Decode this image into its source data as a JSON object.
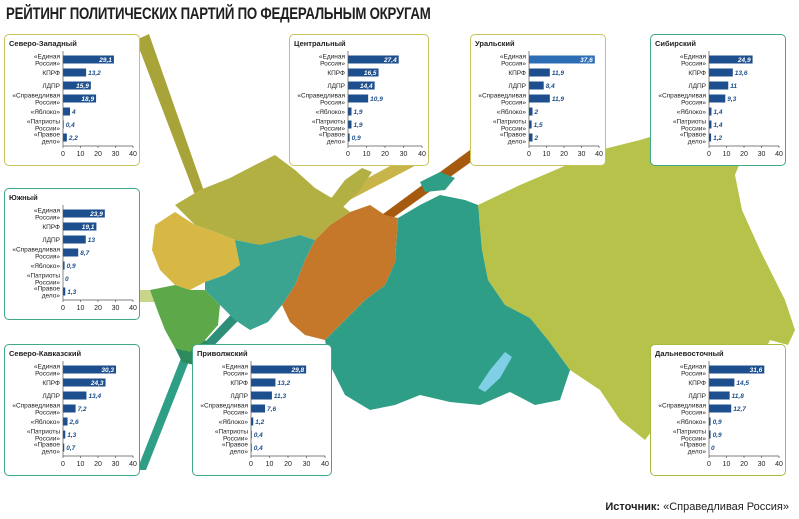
{
  "title": "РЕЙТИНГ ПОЛИТИЧЕСКИХ ПАРТИЙ ПО ФЕДЕРАЛЬНЫМ ОКРУГАМ",
  "source_label": "Источник:",
  "source_value": "«Справедливая Россия»",
  "colors": {
    "bar": "#1d4f8e",
    "bar_highlight": "#2c6db5",
    "text": "#222222",
    "muted_text": "#9aa0a6"
  },
  "chart_data": [
    {
      "type": "bar",
      "title": "Северо-Западный",
      "categories": [
        "«Единая Россия»",
        "КПРФ",
        "ЛДПР",
        "«Справедливая Россия»",
        "«Яблоко»",
        "«Патриоты России»",
        "«Правое дело»"
      ],
      "values": [
        29.1,
        13.2,
        15.9,
        18.9,
        4,
        0.4,
        2.2
      ],
      "value_labels": [
        "29,1",
        "13,2",
        "15,9",
        "18,9",
        "4",
        "0,4",
        "2,2"
      ],
      "xticks": [
        "0",
        "10",
        "20",
        "30",
        "40"
      ],
      "xlim": [
        0,
        40
      ]
    },
    {
      "type": "bar",
      "title": "Центральный",
      "categories": [
        "«Единая Россия»",
        "КПРФ",
        "ЛДПР",
        "«Справедливая Россия»",
        "«Яблоко»",
        "«Патриоты России»",
        "«Правое дело»"
      ],
      "values": [
        27.4,
        16.5,
        14.4,
        10.9,
        1.9,
        1.9,
        0.9
      ],
      "value_labels": [
        "27,4",
        "16,5",
        "14,4",
        "10,9",
        "1,9",
        "1,9",
        "0,9"
      ],
      "xticks": [
        "0",
        "10",
        "20",
        "30",
        "40"
      ],
      "xlim": [
        0,
        40
      ]
    },
    {
      "type": "bar",
      "title": "Уральский",
      "categories": [
        "«Единая Россия»",
        "КПРФ",
        "ЛДПР",
        "«Справедливая Россия»",
        "«Яблоко»",
        "«Патриоты России»",
        "«Правое дело»"
      ],
      "values": [
        37.6,
        11.9,
        8.4,
        11.9,
        2,
        1.5,
        2
      ],
      "value_labels": [
        "37,6",
        "11,9",
        "8,4",
        "11,9",
        "2",
        "1,5",
        "2"
      ],
      "xticks": [
        "0",
        "10",
        "20",
        "30",
        "40"
      ],
      "xlim": [
        0,
        40
      ]
    },
    {
      "type": "bar",
      "title": "Сибирский",
      "categories": [
        "«Единая Россия»",
        "КПРФ",
        "ЛДПР",
        "«Справедливая Россия»",
        "«Яблоко»",
        "«Патриоты России»",
        "«Правое дело»"
      ],
      "values": [
        24.9,
        13.6,
        11,
        9.3,
        1.4,
        1.4,
        1.2
      ],
      "value_labels": [
        "24,9",
        "13,6",
        "11",
        "9,3",
        "1,4",
        "1,4",
        "1,2"
      ],
      "xticks": [
        "0",
        "10",
        "20",
        "30",
        "40"
      ],
      "xlim": [
        0,
        40
      ]
    },
    {
      "type": "bar",
      "title": "Южный",
      "categories": [
        "«Единая Россия»",
        "КПРФ",
        "ЛДПР",
        "«Справедливая Россия»",
        "«Яблоко»",
        "«Патриоты России»",
        "«Правое дело»"
      ],
      "values": [
        23.9,
        19.1,
        13,
        8.7,
        0.9,
        0,
        1.3
      ],
      "value_labels": [
        "23,9",
        "19,1",
        "13",
        "8,7",
        "0,9",
        "0",
        "1,3"
      ],
      "xticks": [
        "0",
        "10",
        "20",
        "30",
        "40"
      ],
      "xlim": [
        0,
        40
      ]
    },
    {
      "type": "bar",
      "title": "Северо-Кавказский",
      "categories": [
        "«Единая Россия»",
        "КПРФ",
        "ЛДПР",
        "«Справедливая Россия»",
        "«Яблоко»",
        "«Патриоты России»",
        "«Правое дело»"
      ],
      "values": [
        30.3,
        24.3,
        13.4,
        7.2,
        2.6,
        1.3,
        0.7
      ],
      "value_labels": [
        "30,3",
        "24,3",
        "13,4",
        "7,2",
        "2,6",
        "1,3",
        "0,7"
      ],
      "xticks": [
        "0",
        "10",
        "20",
        "30",
        "40"
      ],
      "xlim": [
        0,
        40
      ]
    },
    {
      "type": "bar",
      "title": "Приволжский",
      "categories": [
        "«Единая Россия»",
        "КПРФ",
        "ЛДПР",
        "«Справедливая Россия»",
        "«Яблоко»",
        "«Патриоты России»",
        "«Правое дело»"
      ],
      "values": [
        29.8,
        13.2,
        11.3,
        7.6,
        1.2,
        0.4,
        0.4
      ],
      "value_labels": [
        "29,8",
        "13,2",
        "11,3",
        "7,6",
        "1,2",
        "0,4",
        "0,4"
      ],
      "xticks": [
        "0",
        "10",
        "20",
        "30",
        "40"
      ],
      "xlim": [
        0,
        40
      ]
    },
    {
      "type": "bar",
      "title": "Дальневосточный",
      "categories": [
        "«Единая Россия»",
        "КПРФ",
        "ЛДПР",
        "«Справедливая Россия»",
        "«Яблоко»",
        "«Патриоты России»",
        "«Правое дело»"
      ],
      "values": [
        31.6,
        14.5,
        11.8,
        12.7,
        0.9,
        0.9,
        0
      ],
      "value_labels": [
        "31,6",
        "14,5",
        "11,8",
        "12,7",
        "0,9",
        "0,9",
        "0"
      ],
      "xticks": [
        "0",
        "10",
        "20",
        "30",
        "40"
      ],
      "xlim": [
        0,
        40
      ]
    }
  ]
}
